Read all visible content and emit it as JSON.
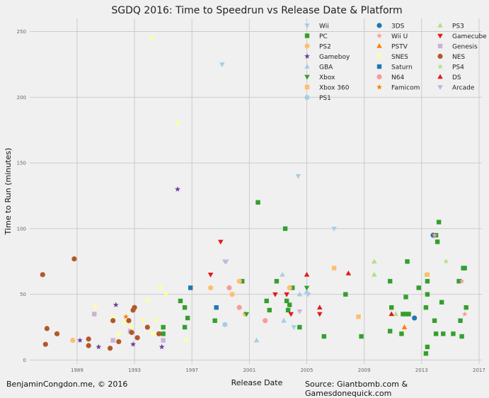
{
  "chart_data": {
    "type": "scatter",
    "title": "SGDQ 2016: Time to Speedrun vs Release Date & Platform",
    "xlabel": "Release Date",
    "ylabel": "Time to Run (minutes)",
    "xlim": [
      1985.7,
      2017.2
    ],
    "ylim": [
      -3,
      260
    ],
    "xticks": [
      1989,
      1993,
      1997,
      2001,
      2005,
      2009,
      2013,
      2017
    ],
    "yticks": [
      0,
      50,
      100,
      150,
      200,
      250
    ],
    "colors": {
      "background": "#f0f0f0",
      "grid": "#cbcbcb"
    },
    "series": [
      {
        "name": "Wii",
        "color": "#a6cee3",
        "marker": "tri_down",
        "points": [
          [
            1999.1,
            225
          ],
          [
            2004.4,
            140
          ],
          [
            2006.9,
            100
          ],
          [
            1999.4,
            75
          ],
          [
            2005.1,
            50
          ],
          [
            2004.1,
            25
          ]
        ]
      },
      {
        "name": "3DS",
        "color": "#1f78b4",
        "marker": "circle",
        "points": [
          [
            2013.8,
            95
          ],
          [
            2012.5,
            32
          ]
        ]
      },
      {
        "name": "PS3",
        "color": "#b2df8a",
        "marker": "tri_up",
        "points": [
          [
            2009.7,
            75
          ],
          [
            2009.7,
            65
          ],
          [
            2011.2,
            35
          ]
        ]
      },
      {
        "name": "PC",
        "color": "#33a02c",
        "marker": "square",
        "points": [
          [
            2001.6,
            120
          ],
          [
            2003.5,
            100
          ],
          [
            2014.2,
            105
          ],
          [
            2014.0,
            95
          ],
          [
            2014.1,
            90
          ],
          [
            2012.0,
            75
          ],
          [
            2015.9,
            70
          ],
          [
            2016.0,
            70
          ],
          [
            2002.9,
            60
          ],
          [
            2000.5,
            60
          ],
          [
            2010.8,
            60
          ],
          [
            2013.4,
            60
          ],
          [
            2015.6,
            60
          ],
          [
            2007.7,
            50
          ],
          [
            2013.4,
            50
          ],
          [
            2004.0,
            55
          ],
          [
            2012.8,
            55
          ],
          [
            2011.9,
            48
          ],
          [
            2002.2,
            45
          ],
          [
            2003.6,
            45
          ],
          [
            2013.3,
            40
          ],
          [
            2016.1,
            40
          ],
          [
            2003.8,
            42
          ],
          [
            2010.9,
            40
          ],
          [
            2014.4,
            44
          ],
          [
            1996.2,
            45
          ],
          [
            2011.7,
            35
          ],
          [
            2011.9,
            35
          ],
          [
            2013.9,
            30
          ],
          [
            2012.1,
            35
          ],
          [
            2002.4,
            38
          ],
          [
            2003.7,
            38
          ],
          [
            1996.7,
            32
          ],
          [
            1998.6,
            30
          ],
          [
            2015.7,
            30
          ],
          [
            2004.5,
            25
          ],
          [
            2014.0,
            20
          ],
          [
            2014.5,
            20
          ],
          [
            2015.2,
            20
          ],
          [
            2015.8,
            18
          ],
          [
            2010.8,
            22
          ],
          [
            2011.6,
            20
          ],
          [
            2006.2,
            18
          ],
          [
            2008.8,
            18
          ],
          [
            2013.4,
            10
          ],
          [
            2013.3,
            5
          ],
          [
            1995.0,
            25
          ],
          [
            1995.0,
            20
          ],
          [
            1996.5,
            25
          ],
          [
            1996.5,
            40
          ]
        ]
      },
      {
        "name": "Wii U",
        "color": "#fb9a99",
        "marker": "star",
        "points": [
          [
            2015.8,
            60
          ],
          [
            2016.0,
            35
          ],
          [
            2013.9,
            95
          ]
        ]
      },
      {
        "name": "Gamecube",
        "color": "#e31a1c",
        "marker": "tri_down",
        "points": [
          [
            1999.0,
            90
          ],
          [
            1998.3,
            65
          ],
          [
            2002.8,
            50
          ],
          [
            2003.6,
            50
          ],
          [
            2003.9,
            35
          ],
          [
            2005.9,
            35
          ]
        ]
      },
      {
        "name": "PS2",
        "color": "#fdbf6f",
        "marker": "circle",
        "points": [
          [
            2000.3,
            60
          ],
          [
            1999.8,
            50
          ],
          [
            1998.3,
            55
          ],
          [
            2003.8,
            55
          ],
          [
            1988.7,
            15
          ],
          [
            2000.7,
            35
          ]
        ]
      },
      {
        "name": "PSTV",
        "color": "#ff7f00",
        "marker": "tri_up",
        "points": [
          [
            2011.8,
            25
          ]
        ]
      },
      {
        "name": "Genesis",
        "color": "#cab2d6",
        "marker": "square",
        "points": [
          [
            1990.2,
            35
          ],
          [
            1991.5,
            15
          ],
          [
            1992.7,
            22
          ],
          [
            1995.0,
            15
          ]
        ]
      },
      {
        "name": "Gameboy",
        "color": "#6a3d9a",
        "marker": "star",
        "points": [
          [
            1996.0,
            130
          ],
          [
            1991.7,
            42
          ],
          [
            1989.2,
            15
          ],
          [
            1990.5,
            10
          ],
          [
            1992.9,
            12
          ],
          [
            1994.9,
            10
          ]
        ]
      },
      {
        "name": "SNES",
        "color": "#ffff99",
        "marker": "tri_down",
        "points": [
          [
            1994.2,
            245
          ],
          [
            1996.0,
            180
          ],
          [
            1994.8,
            55
          ],
          [
            1993.9,
            45
          ],
          [
            1995.2,
            50
          ],
          [
            1991.5,
            32
          ],
          [
            1992.3,
            28
          ],
          [
            1993.6,
            30
          ],
          [
            1994.5,
            30
          ],
          [
            1996.6,
            15
          ],
          [
            1991.9,
            20
          ],
          [
            1990.3,
            40
          ],
          [
            1992.8,
            25
          ],
          [
            1994.3,
            20
          ]
        ]
      },
      {
        "name": "NES",
        "color": "#b15928",
        "marker": "circle",
        "points": [
          [
            1988.8,
            77
          ],
          [
            1986.6,
            65
          ],
          [
            1986.9,
            24
          ],
          [
            1987.6,
            20
          ],
          [
            1986.8,
            12
          ],
          [
            1989.8,
            16
          ],
          [
            1989.8,
            11
          ],
          [
            1991.3,
            9
          ],
          [
            1991.5,
            30
          ],
          [
            1991.9,
            14
          ],
          [
            1992.6,
            30
          ],
          [
            1992.8,
            21
          ],
          [
            1993.2,
            17
          ],
          [
            1992.9,
            38
          ],
          [
            1993.0,
            40
          ],
          [
            1993.9,
            25
          ],
          [
            1994.7,
            20
          ]
        ]
      },
      {
        "name": "GBA",
        "color": "#a6cee3",
        "marker": "tri_up",
        "points": [
          [
            2001.5,
            15
          ],
          [
            2003.3,
            65
          ],
          [
            2004.5,
            50
          ],
          [
            2003.4,
            30
          ],
          [
            2005.0,
            52
          ]
        ]
      },
      {
        "name": "Saturn",
        "color": "#1f78b4",
        "marker": "square",
        "points": [
          [
            1996.9,
            55
          ],
          [
            1998.7,
            40
          ]
        ]
      },
      {
        "name": "PS4",
        "color": "#b2df8a",
        "marker": "star",
        "points": [
          [
            2014.7,
            75
          ],
          [
            2013.3,
            65
          ]
        ]
      },
      {
        "name": "Xbox",
        "color": "#33a02c",
        "marker": "tri_down",
        "points": [
          [
            2005.0,
            55
          ],
          [
            2000.8,
            35
          ]
        ]
      },
      {
        "name": "N64",
        "color": "#fb9a99",
        "marker": "circle",
        "points": [
          [
            1999.6,
            55
          ],
          [
            2000.3,
            40
          ],
          [
            2002.1,
            30
          ]
        ]
      },
      {
        "name": "DS",
        "color": "#e31a1c",
        "marker": "tri_up",
        "points": [
          [
            2005.0,
            65
          ],
          [
            2007.9,
            66
          ],
          [
            2005.9,
            40
          ],
          [
            2010.9,
            35
          ]
        ]
      },
      {
        "name": "Xbox 360",
        "color": "#fdbf6f",
        "marker": "square",
        "points": [
          [
            2006.9,
            70
          ],
          [
            2013.4,
            65
          ],
          [
            2008.6,
            33
          ]
        ]
      },
      {
        "name": "Famicom",
        "color": "#ff7f00",
        "marker": "star",
        "points": [
          [
            1992.4,
            33
          ]
        ]
      },
      {
        "name": "Arcade",
        "color": "#cab2d6",
        "marker": "tri_down",
        "points": [
          [
            1999.3,
            75
          ],
          [
            2004.5,
            37
          ]
        ]
      },
      {
        "name": "PS1",
        "color": "#a6cee3",
        "marker": "circle",
        "points": [
          [
            1999.3,
            27
          ]
        ]
      }
    ]
  },
  "footer": {
    "credit": "BenjaminCongdon.me, © 2016",
    "source": "Source: Giantbomb.com & Gamesdonequick.com"
  }
}
